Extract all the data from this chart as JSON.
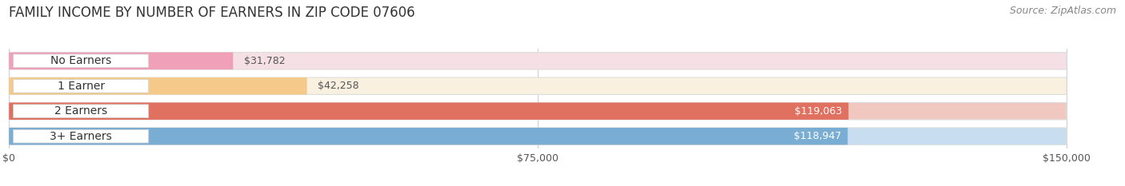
{
  "title": "FAMILY INCOME BY NUMBER OF EARNERS IN ZIP CODE 07606",
  "source": "Source: ZipAtlas.com",
  "categories": [
    "No Earners",
    "1 Earner",
    "2 Earners",
    "3+ Earners"
  ],
  "values": [
    31782,
    42258,
    119063,
    118947
  ],
  "labels": [
    "$31,782",
    "$42,258",
    "$119,063",
    "$118,947"
  ],
  "bar_colors": [
    "#f0a0b8",
    "#f5c98a",
    "#e07060",
    "#7aadd4"
  ],
  "bar_bg_colors": [
    "#f5e0e5",
    "#faf0e0",
    "#f0c8c0",
    "#c8ddf0"
  ],
  "label_colors": [
    "#666666",
    "#666666",
    "#ffffff",
    "#ffffff"
  ],
  "x_ticks": [
    0,
    75000,
    150000
  ],
  "x_tick_labels": [
    "$0",
    "$75,000",
    "$150,000"
  ],
  "xlim": [
    0,
    157000
  ],
  "background_color": "#ffffff",
  "title_fontsize": 12,
  "source_fontsize": 9,
  "label_fontsize": 9,
  "category_fontsize": 10
}
